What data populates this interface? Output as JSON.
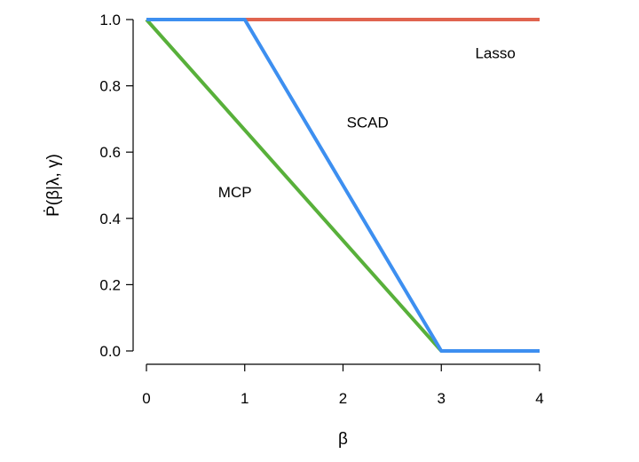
{
  "chart_data": {
    "type": "line",
    "title": "",
    "xlabel": "β",
    "ylabel": "Ṗ(β|λ, γ)",
    "xlim": [
      0,
      4
    ],
    "ylim": [
      0,
      1
    ],
    "grid": false,
    "legend": "none",
    "x_ticks": [
      {
        "value": 0,
        "label": "0"
      },
      {
        "value": 1,
        "label": "1"
      },
      {
        "value": 2,
        "label": "2"
      },
      {
        "value": 3,
        "label": "3"
      },
      {
        "value": 4,
        "label": "4"
      }
    ],
    "y_ticks": [
      {
        "value": 0.0,
        "label": "0.0"
      },
      {
        "value": 0.2,
        "label": "0.2"
      },
      {
        "value": 0.4,
        "label": "0.4"
      },
      {
        "value": 0.6,
        "label": "0.6"
      },
      {
        "value": 0.8,
        "label": "0.8"
      },
      {
        "value": 1.0,
        "label": "1.0"
      }
    ],
    "series": [
      {
        "name": "Lasso",
        "color": "#e0644f",
        "points": [
          [
            0,
            1
          ],
          [
            4,
            1
          ]
        ],
        "label_at": [
          3.55,
          0.9
        ]
      },
      {
        "name": "MCP",
        "color": "#58b03a",
        "points": [
          [
            0,
            1
          ],
          [
            3,
            0
          ],
          [
            4,
            0
          ]
        ],
        "label_at": [
          0.9,
          0.48
        ]
      },
      {
        "name": "SCAD",
        "color": "#3d8ff0",
        "points": [
          [
            0,
            1
          ],
          [
            1,
            1
          ],
          [
            3,
            0
          ],
          [
            4,
            0
          ]
        ],
        "label_at": [
          2.25,
          0.69
        ]
      }
    ]
  }
}
